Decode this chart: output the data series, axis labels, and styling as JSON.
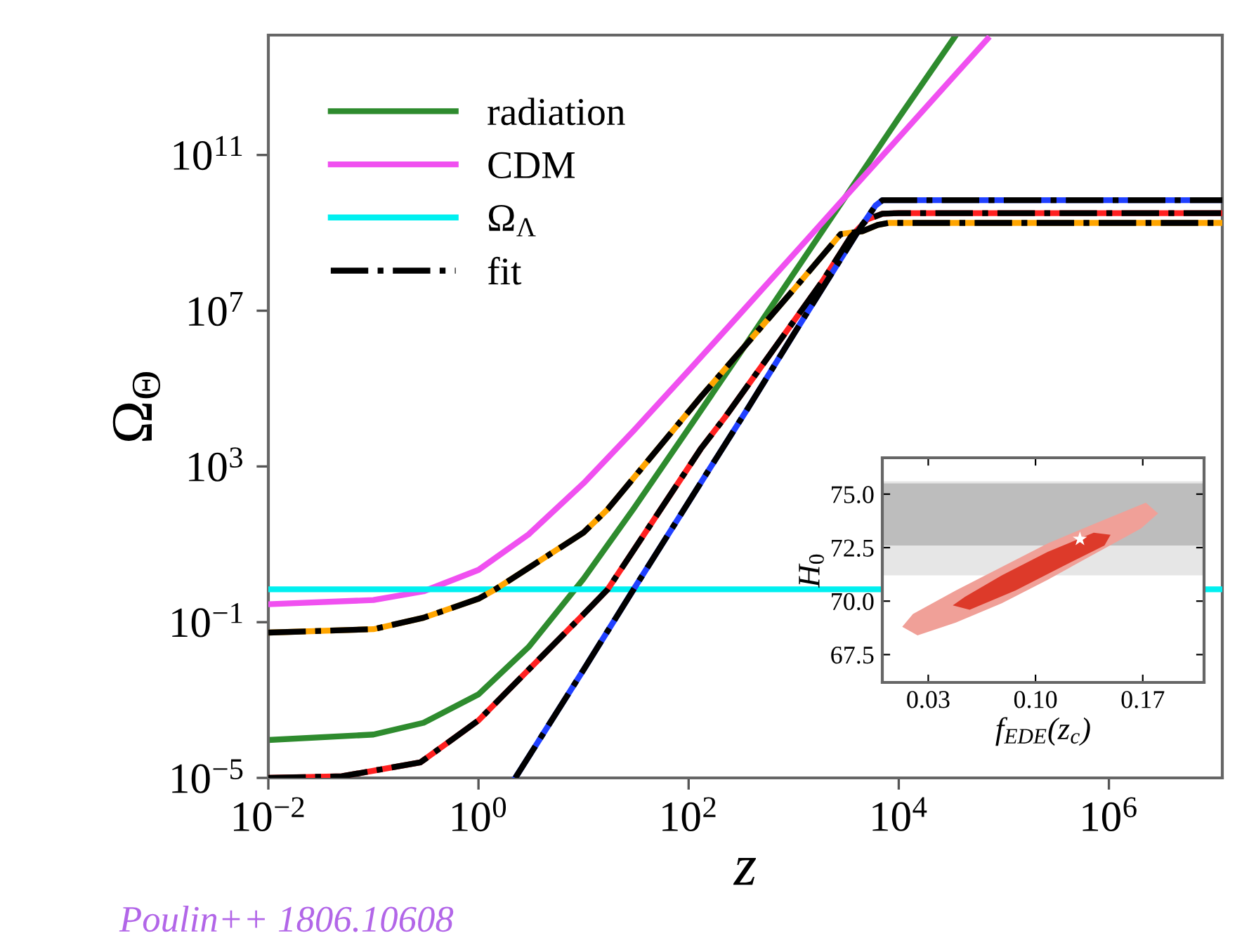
{
  "chart_data": [
    {
      "type": "line",
      "xlabel": "z",
      "ylabel": "Ω$_{Θ}$",
      "log": "xy",
      "legend": "top left",
      "xlim": [
        0.01,
        12000000
      ],
      "ylim": [
        1e-05,
        120000000000000
      ],
      "xticks": [
        {
          "value": 0.01,
          "label": "10$^{−2}$"
        },
        {
          "value": 1,
          "label": "10$^{0}$"
        },
        {
          "value": 100,
          "label": "10$^{2}$"
        },
        {
          "value": 10000,
          "label": "10$^{4}$"
        },
        {
          "value": 1000000,
          "label": "10$^{6}$"
        }
      ],
      "yticks": [
        {
          "value": 1e-05,
          "label": "10$^{−5}$"
        },
        {
          "value": 0.1,
          "label": "10$^{−1}$"
        },
        {
          "value": 1000,
          "label": "10$^{3}$"
        },
        {
          "value": 10000000,
          "label": "10$^{7}$"
        },
        {
          "value": 100000000000,
          "label": "10$^{11}$"
        }
      ],
      "annotations": [
        "Poulin++ 1806.10608"
      ],
      "series": [
        {
          "name": "radiation",
          "color": "#2e8b2e",
          "line_style": "solid",
          "x": [
            0.01,
            0.1,
            0.3,
            1,
            3,
            10,
            30,
            100,
            300,
            1000,
            3000,
            10000,
            35000
          ],
          "values": [
            9.4e-05,
            0.00013,
            0.00026,
            0.0014,
            0.023,
            1.3,
            83,
            9400,
            730000,
            90000000,
            7300000000,
            900000000000,
            120000000000000
          ]
        },
        {
          "name": "CDM",
          "color": "#f050f0",
          "line_style": "solid",
          "x": [
            0.01,
            0.1,
            0.3,
            1,
            3,
            10,
            30,
            100,
            300,
            1000,
            3000,
            10000,
            30000,
            70000
          ],
          "values": [
            0.29,
            0.37,
            0.62,
            2.2,
            18,
            370,
            8300,
            290000,
            7600000,
            280000000,
            7600000000,
            280000000000,
            7600000000000,
            96000000000000
          ]
        },
        {
          "name": "Ω$_{Λ}$",
          "color": "#00f0f0",
          "line_style": "solid",
          "x": [
            0.01,
            12000000
          ],
          "values": [
            0.7,
            0.7
          ]
        },
        {
          "color": "#ffa500",
          "line_style": "solid",
          "x": [
            0.01,
            0.1,
            0.3,
            1,
            1.45,
            10,
            17,
            130,
            1000,
            2800,
            4500,
            6300,
            8000,
            12000000
          ],
          "values": [
            0.054,
            0.066,
            0.13,
            0.4,
            0.7,
            20,
            80,
            60000,
            35000000,
            930000000,
            1100000000,
            1600000000,
            1800000000,
            1800000000
          ]
        },
        {
          "color": "#ff2020",
          "line_style": "solid",
          "x": [
            0.01,
            0.05,
            0.28,
            1,
            3,
            10,
            17,
            130,
            224,
            1900,
            3500,
            5000,
            7000,
            10000,
            12000000
          ],
          "values": [
            1e-05,
            1.1e-05,
            2.5e-05,
            0.0003,
            0.006,
            0.16,
            0.7,
            2800,
            19000,
            60000000,
            800000000,
            2200000000,
            3100000000,
            3200000000,
            3200000000
          ]
        },
        {
          "color": "#2040ff",
          "line_style": "solid",
          "x": [
            2.24,
            10,
            30,
            132,
            363,
            1000,
            4266,
            6000,
            7000,
            10000,
            12000000
          ],
          "values": [
            1e-05,
            0.006,
            0.7,
            400,
            30000,
            2500000,
            1300000000,
            5000000000,
            6900000000,
            6900000000,
            6900000000
          ]
        },
        {
          "name": "fit",
          "color": "#000000",
          "line_style": "dashdot",
          "x": [
            0.01,
            0.1,
            0.3,
            1,
            1.45,
            10,
            17,
            130,
            1000,
            2800,
            4500,
            6300,
            8000,
            12000000
          ],
          "values": [
            0.054,
            0.066,
            0.13,
            0.4,
            0.7,
            20,
            80,
            60000,
            35000000,
            930000000,
            1100000000,
            1600000000,
            1800000000,
            1800000000
          ]
        },
        {
          "color": "#000000",
          "line_style": "dashdot",
          "x": [
            0.01,
            0.05,
            0.28,
            1,
            3,
            10,
            17,
            130,
            224,
            1900,
            3500,
            5000,
            7000,
            10000,
            12000000
          ],
          "values": [
            1e-05,
            1.1e-05,
            2.5e-05,
            0.0003,
            0.006,
            0.16,
            0.7,
            2800,
            19000,
            60000000,
            800000000,
            2200000000,
            3100000000,
            3200000000,
            3200000000
          ]
        },
        {
          "color": "#000000",
          "line_style": "dashdot",
          "x": [
            2.24,
            10,
            30,
            132,
            363,
            1000,
            4266,
            6000,
            7000,
            10000,
            12000000
          ],
          "values": [
            1e-05,
            0.006,
            0.7,
            400,
            30000,
            2500000,
            1300000000,
            5000000000,
            6900000000,
            6900000000,
            6900000000
          ]
        }
      ]
    },
    {
      "type": "area",
      "xlabel": "f$_{EDE}$(z$_{c}$)",
      "ylabel": "H$_{0}$",
      "xlim": [
        0.0,
        0.21
      ],
      "ylim": [
        66.2,
        76.7
      ],
      "xticks": [
        {
          "value": 0.03,
          "label": "0.03"
        },
        {
          "value": 0.1,
          "label": "0.10"
        },
        {
          "value": 0.17,
          "label": "0.17"
        }
      ],
      "yticks": [
        {
          "value": 67.5,
          "label": "67.5"
        },
        {
          "value": 70,
          "label": "70.0"
        },
        {
          "value": 72.5,
          "label": "72.5"
        },
        {
          "value": 75,
          "label": "75.0"
        }
      ],
      "bands": [
        {
          "axis": "y",
          "from": 71.2,
          "to": 75.6,
          "color": "#e6e6e6"
        },
        {
          "axis": "y",
          "from": 72.6,
          "to": 75.5,
          "color": "#bdbdbd"
        }
      ],
      "series": [
        {
          "color": "#f0a098",
          "x": [
            0.013,
            0.02,
            0.048,
            0.078,
            0.108,
            0.138,
            0.172,
            0.18,
            0.169,
            0.141,
            0.108,
            0.078,
            0.048,
            0.023
          ],
          "values": [
            68.8,
            69.4,
            70.5,
            71.6,
            72.7,
            73.6,
            74.6,
            74.1,
            73.4,
            72.3,
            71.0,
            69.9,
            69.0,
            68.4
          ]
        },
        {
          "color": "#dd3a2a",
          "x": [
            0.046,
            0.054,
            0.078,
            0.108,
            0.138,
            0.149,
            0.145,
            0.117,
            0.087,
            0.057
          ],
          "values": [
            69.8,
            70.2,
            71.2,
            72.3,
            73.2,
            73.1,
            72.6,
            71.6,
            70.5,
            69.6
          ]
        },
        {
          "type": "scatter",
          "marker": "star",
          "color": "#ffffff",
          "x": [
            0.129
          ],
          "values": [
            72.9
          ]
        }
      ]
    }
  ]
}
